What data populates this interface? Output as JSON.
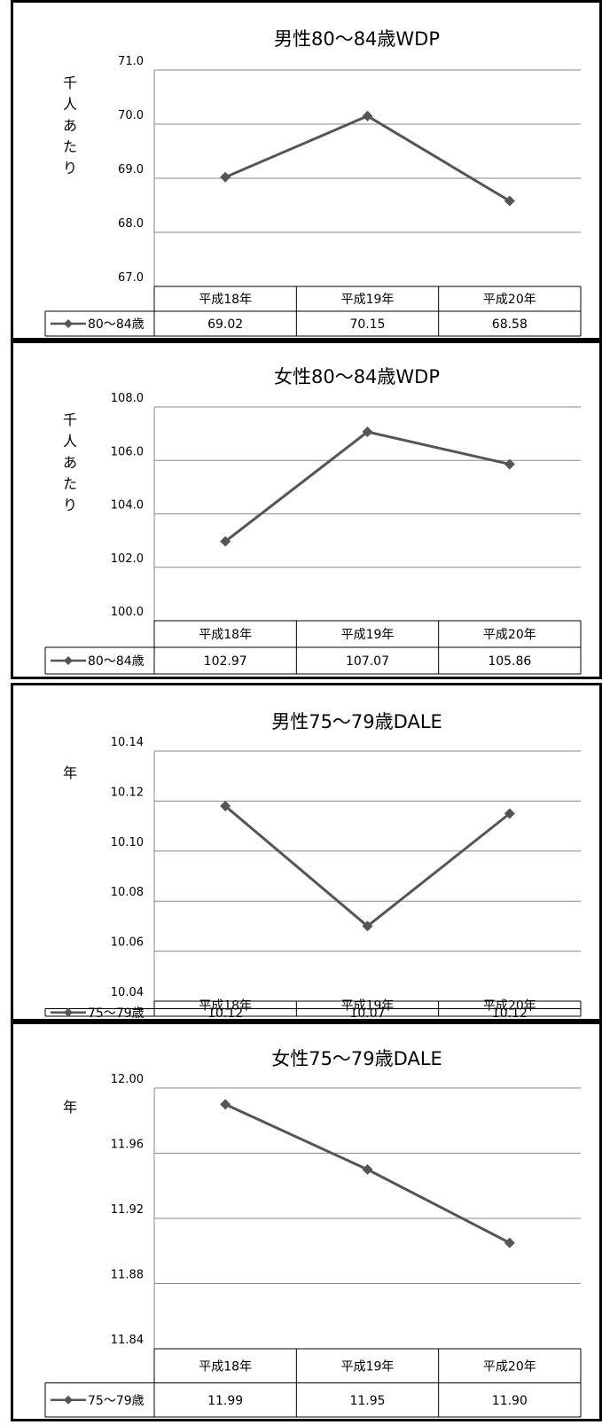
{
  "chart_data": [
    {
      "type": "line",
      "title": "男性80～84歳WDP",
      "ylabel": "千人あたり",
      "categories": [
        "平成18年",
        "平成19年",
        "平成20年"
      ],
      "ylim": [
        67.0,
        71.0
      ],
      "yticks": [
        "67.0",
        "68.0",
        "69.0",
        "70.0",
        "71.0"
      ],
      "series": [
        {
          "name": "80～84歳",
          "values": [
            69.02,
            70.15,
            68.58
          ],
          "labels": [
            "69.02",
            "70.15",
            "68.58"
          ]
        }
      ],
      "grid": true,
      "legend": "data-table-bottom"
    },
    {
      "type": "line",
      "title": "女性80～84歳WDP",
      "ylabel": "千人あたり",
      "categories": [
        "平成18年",
        "平成19年",
        "平成20年"
      ],
      "ylim": [
        100.0,
        108.0
      ],
      "yticks": [
        "100.0",
        "102.0",
        "104.0",
        "106.0",
        "108.0"
      ],
      "series": [
        {
          "name": "80～84歳",
          "values": [
            102.97,
            107.07,
            105.86
          ],
          "labels": [
            "102.97",
            "107.07",
            "105.86"
          ]
        }
      ],
      "grid": true,
      "legend": "data-table-bottom"
    },
    {
      "type": "line",
      "title": "男性75～79歳DALE",
      "ylabel": "年",
      "categories": [
        "平成18年",
        "平成19年",
        "平成20年"
      ],
      "ylim": [
        10.04,
        10.14
      ],
      "yticks": [
        "10.04",
        "10.06",
        "10.08",
        "10.10",
        "10.12",
        "10.14"
      ],
      "series": [
        {
          "name": "75～79歳",
          "values": [
            10.118,
            10.07,
            10.115
          ],
          "labels": [
            "10.12",
            "10.07",
            "10.12"
          ]
        }
      ],
      "grid": true,
      "legend": "data-table-bottom"
    },
    {
      "type": "line",
      "title": "女性75～79歳DALE",
      "ylabel": "年",
      "categories": [
        "平成18年",
        "平成19年",
        "平成20年"
      ],
      "ylim": [
        11.84,
        12.0
      ],
      "yticks": [
        "11.84",
        "11.88",
        "11.92",
        "11.96",
        "12.00"
      ],
      "series": [
        {
          "name": "75～79歳",
          "values": [
            11.99,
            11.95,
            11.905
          ],
          "labels": [
            "11.99",
            "11.95",
            "11.90"
          ]
        }
      ],
      "grid": true,
      "legend": "data-table-bottom"
    }
  ],
  "colors": {
    "line": "#555555",
    "grid": "#888888",
    "border": "#000000",
    "text": "#000000"
  }
}
